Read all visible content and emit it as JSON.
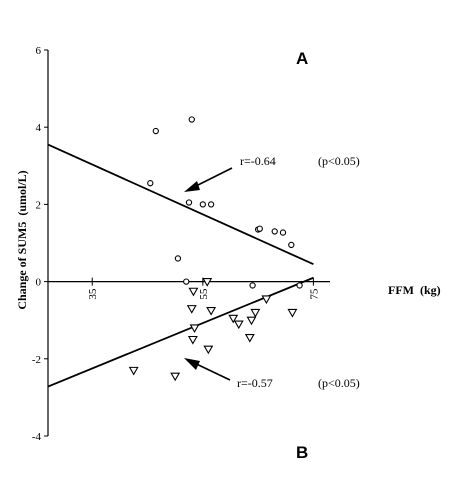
{
  "chart_data": {
    "type": "scatter",
    "title": "",
    "xlabel": "FFM  (kg)",
    "ylabel": "Change of SUM5  (umol/L)",
    "panels": [
      "A",
      "B"
    ],
    "xlim": [
      27,
      78
    ],
    "ylim": [
      -4,
      6
    ],
    "x_ticks": [
      {
        "value": 35,
        "label": "35"
      },
      {
        "value": 55,
        "label": "55"
      },
      {
        "value": 75,
        "label": "75"
      }
    ],
    "y_ticks": [
      {
        "value": 6,
        "label": "6"
      },
      {
        "value": 4,
        "label": "4"
      },
      {
        "value": 2,
        "label": "2"
      },
      {
        "value": 0,
        "label": "0"
      },
      {
        "value": -2,
        "label": "-2"
      },
      {
        "value": -4,
        "label": "-4"
      }
    ],
    "series": [
      {
        "marker": "circle",
        "points": [
          [
            46.5,
            3.9
          ],
          [
            53,
            4.2
          ],
          [
            45.5,
            2.55
          ],
          [
            52.5,
            2.05
          ],
          [
            55,
            2.0
          ],
          [
            56.5,
            2.0
          ],
          [
            65,
            1.35
          ],
          [
            65.3,
            1.37
          ],
          [
            68,
            1.3
          ],
          [
            69.5,
            1.27
          ],
          [
            71,
            0.95
          ],
          [
            50.5,
            0.6
          ],
          [
            52,
            0.0
          ],
          [
            64,
            -0.1
          ],
          [
            72.5,
            -0.1
          ]
        ],
        "fit": {
          "x": [
            27,
            75
          ],
          "y": [
            3.55,
            0.45
          ]
        }
      },
      {
        "marker": "triangle-down",
        "points": [
          [
            55.8,
            0.0
          ],
          [
            53.3,
            -0.25
          ],
          [
            66.5,
            -0.45
          ],
          [
            53,
            -0.7
          ],
          [
            56.5,
            -0.75
          ],
          [
            60.5,
            -0.95
          ],
          [
            61.5,
            -1.1
          ],
          [
            63.8,
            -1.0
          ],
          [
            64.5,
            -0.8
          ],
          [
            71.2,
            -0.8
          ],
          [
            53.5,
            -1.2
          ],
          [
            63.5,
            -1.45
          ],
          [
            53.2,
            -1.5
          ],
          [
            56,
            -1.75
          ],
          [
            42.5,
            -2.3
          ],
          [
            50,
            -2.45
          ]
        ],
        "fit": {
          "x": [
            27,
            75
          ],
          "y": [
            -2.72,
            0.1
          ]
        }
      }
    ],
    "annotations": [
      {
        "text": "r=-0.64",
        "target": 0
      },
      {
        "text": "(p<0.05)",
        "target": 0
      },
      {
        "text": "r=-0.57",
        "target": 1
      },
      {
        "text": "(p<0.05)",
        "target": 1
      }
    ]
  }
}
